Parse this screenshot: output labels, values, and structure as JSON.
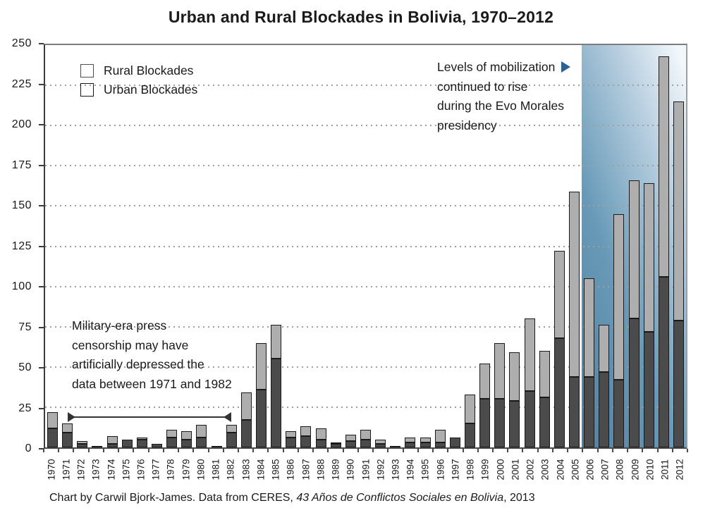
{
  "title": "Urban and Rural Blockades in Bolivia, 1970–2012",
  "legend": {
    "rural_label": "Rural Blockades",
    "urban_label": "Urban Blockades"
  },
  "annotations": {
    "censorship": {
      "lines": [
        "Military-era press",
        "censorship may have",
        "artificially depressed the",
        "data between 1971 and 1982"
      ],
      "span_from": "1971",
      "span_to": "1982"
    },
    "morales": {
      "lines": [
        "Levels of mobilization",
        "continued to rise",
        "during the Evo Morales",
        "presidency"
      ]
    }
  },
  "footer": {
    "prefix": "Chart by Carwil Bjork-James. Data from CERES, ",
    "italic_title": "43 Años de Conflictos Sociales en Bolivia",
    "suffix": ", 2013"
  },
  "colors": {
    "urban": "#4b4b4b",
    "rural": "#aeaeae",
    "bar_border": "#1a1a1a",
    "arrow_blue": "#2a6293",
    "highlight_gradient_left": "#54809f",
    "highlight_gradient_right": "#f4f8fb",
    "grid": "#9f9f9f"
  },
  "chart_data": {
    "type": "bar",
    "stacked": true,
    "title": "Urban and Rural Blockades in Bolivia, 1970–2012",
    "categories": [
      "1970",
      "1971",
      "1972",
      "1973",
      "1974",
      "1975",
      "1976",
      "1977",
      "1978",
      "1979",
      "1980",
      "1981",
      "1982",
      "1983",
      "1984",
      "1985",
      "1986",
      "1987",
      "1988",
      "1989",
      "1990",
      "1991",
      "1992",
      "1993",
      "1994",
      "1995",
      "1996",
      "1997",
      "1998",
      "1999",
      "2000",
      "2001",
      "2002",
      "2003",
      "2004",
      "2005",
      "2006",
      "2007",
      "2008",
      "2009",
      "2010",
      "2011",
      "2012"
    ],
    "series": [
      {
        "name": "Urban Blockades",
        "values": [
          12,
          9,
          2,
          1,
          2,
          5,
          5,
          2,
          6,
          5,
          6,
          1,
          9,
          17,
          36,
          55,
          6,
          7,
          5,
          2,
          4,
          5,
          2,
          1,
          3,
          3,
          3,
          6,
          15,
          30,
          30,
          29,
          35,
          31,
          68,
          44,
          44,
          47,
          42,
          80,
          72,
          106,
          79
        ]
      },
      {
        "name": "Rural Blockades",
        "values": [
          10,
          6,
          2,
          0,
          5,
          0,
          1,
          0,
          5,
          5,
          8,
          0,
          5,
          17,
          29,
          21,
          4,
          6,
          7,
          1,
          4,
          6,
          3,
          0,
          3,
          3,
          8,
          0,
          18,
          22,
          35,
          30,
          45,
          29,
          54,
          115,
          61,
          29,
          103,
          86,
          92,
          137,
          136
        ]
      }
    ],
    "ylim": [
      0,
      250
    ],
    "ytick_step": 25,
    "ytick_labels": [
      "0",
      "25",
      "50",
      "75",
      "100",
      "125",
      "150",
      "175",
      "200",
      "225",
      "250"
    ],
    "grid": "dotted-horizontal",
    "legend_position": "top-left-inside",
    "highlight_region": {
      "from": "2006",
      "to": "2012",
      "label": "Evo Morales presidency"
    },
    "span_annotation": {
      "from": "1971",
      "to": "1982"
    }
  }
}
